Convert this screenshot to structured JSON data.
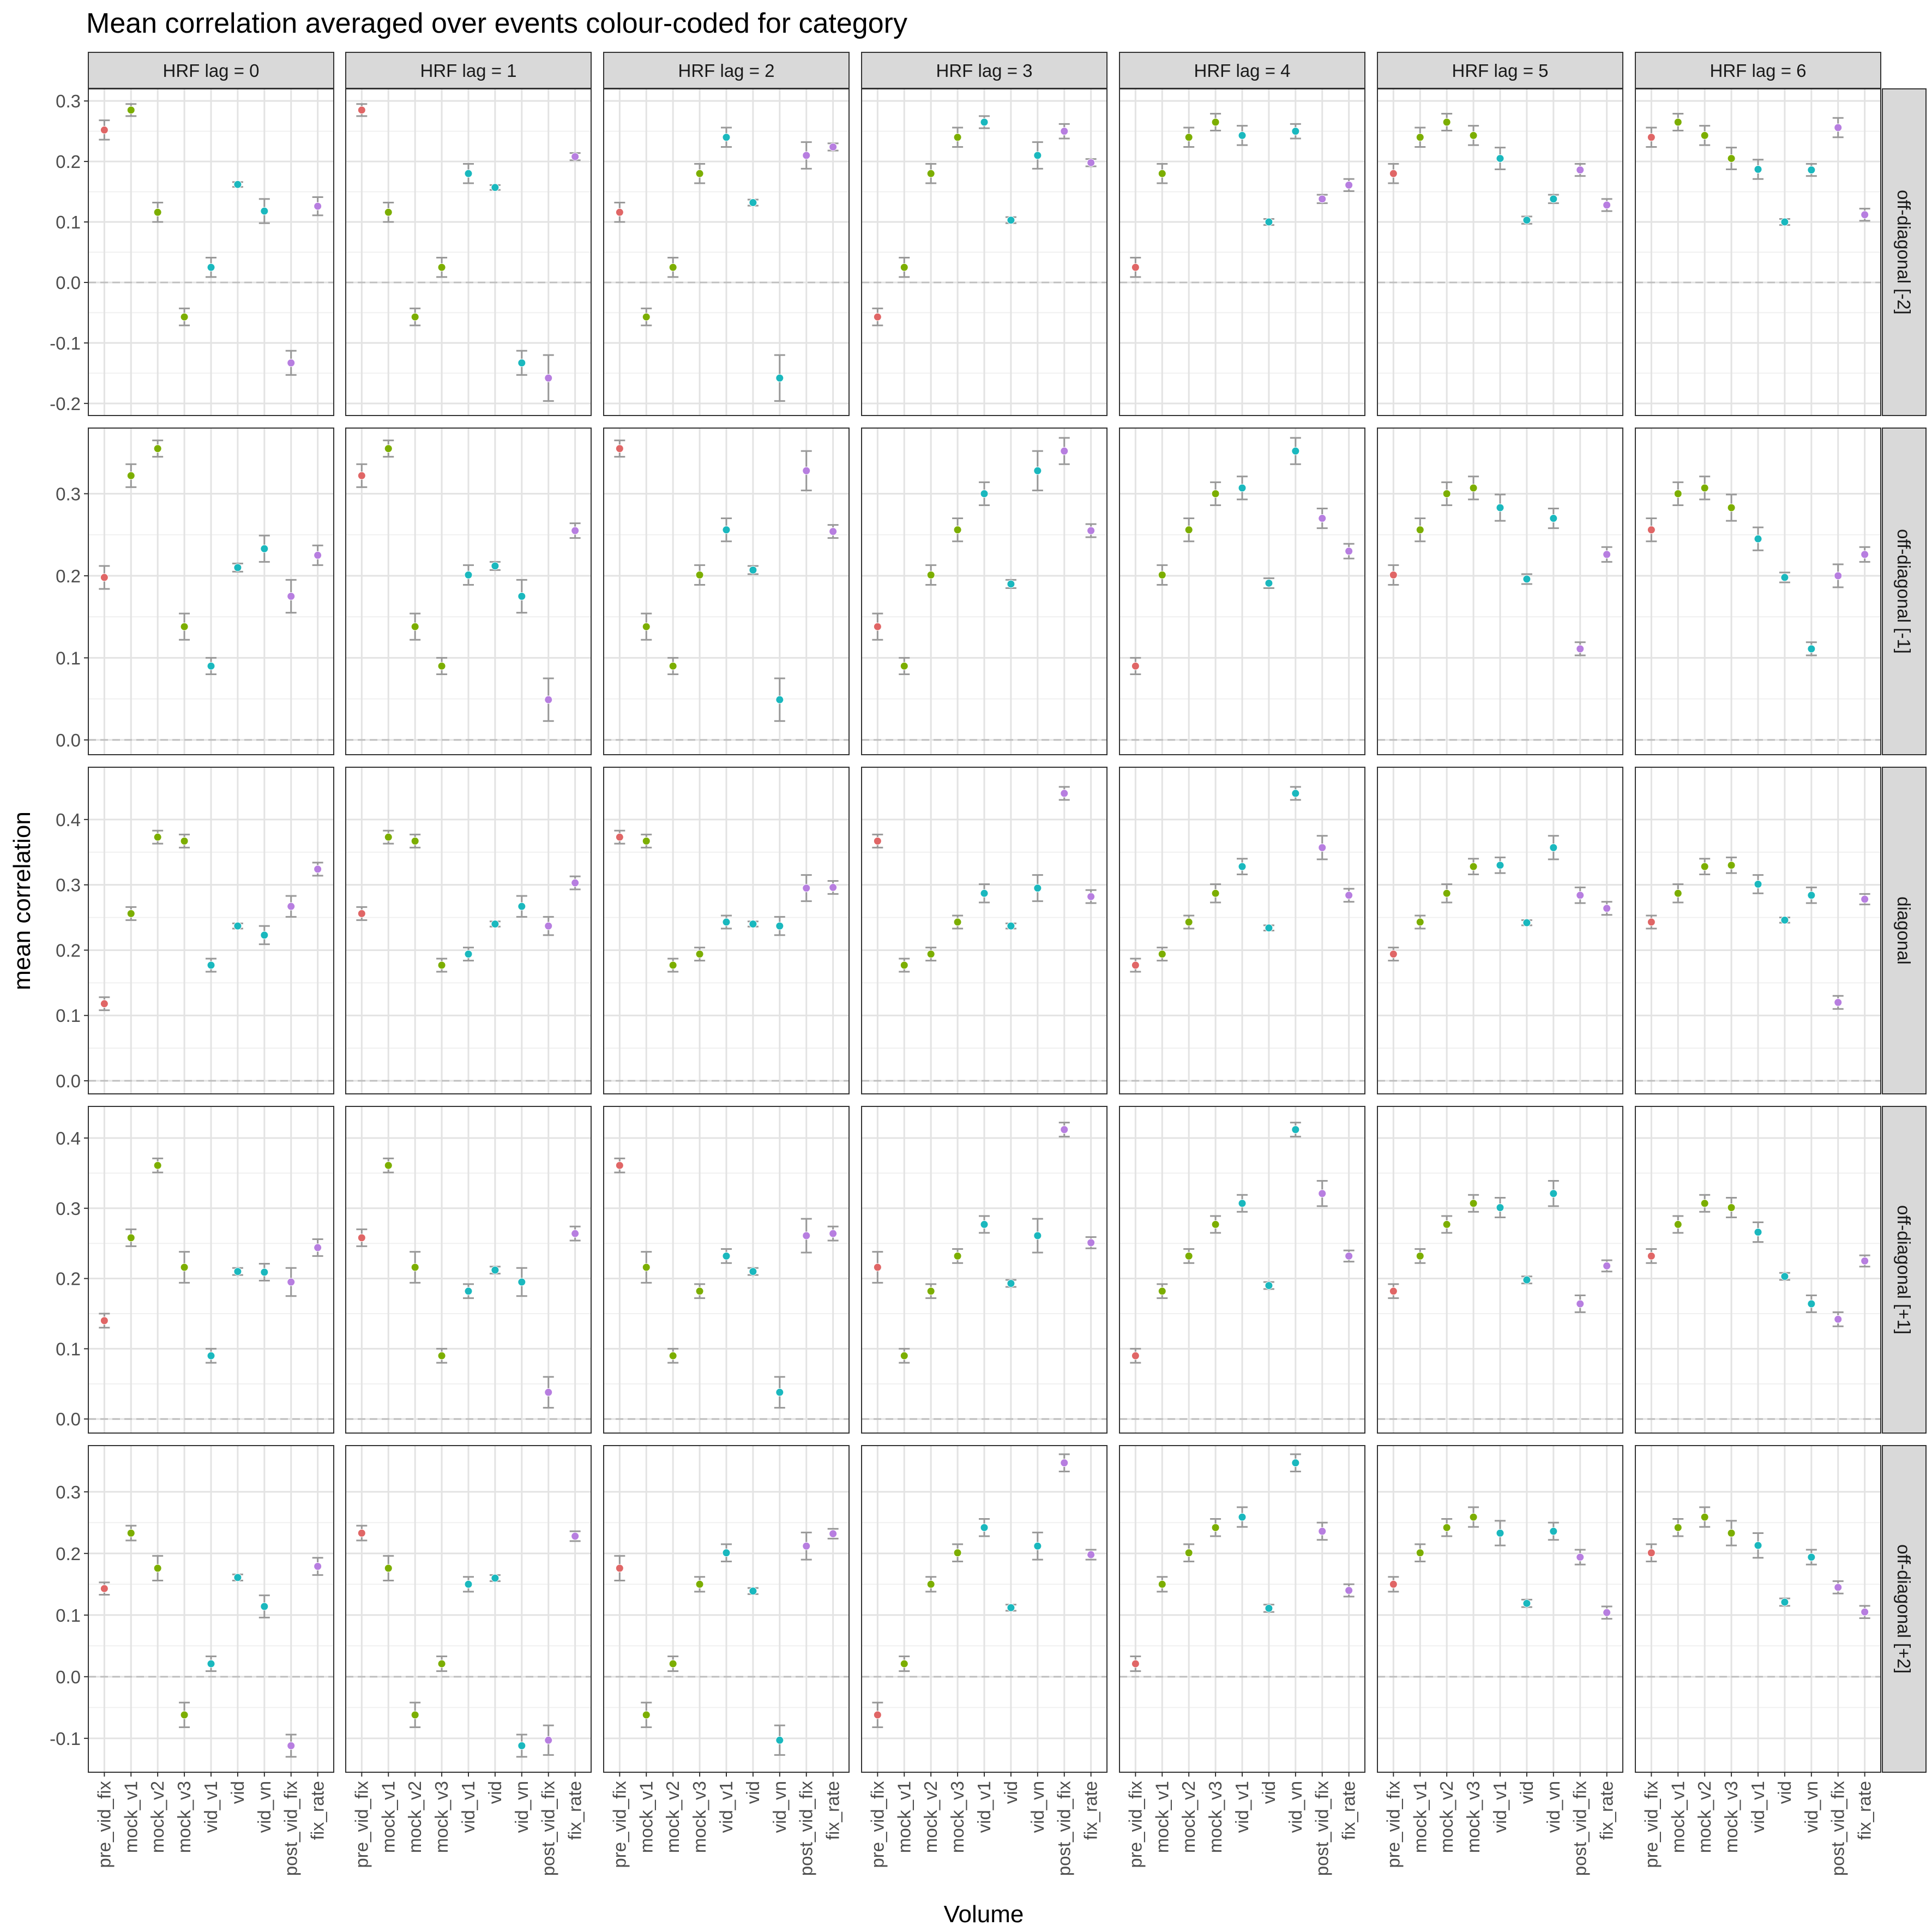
{
  "chart_data": {
    "type": "scatter",
    "subtype": "point-with-errorbars, faceted grid",
    "title": "Mean correlation averaged over events colour-coded for category",
    "xlabel": "Volume",
    "ylabel": "mean correlation",
    "categories": [
      "pre_vid_fix",
      "mock_v1",
      "mock_v2",
      "mock_v3",
      "vid_v1",
      "vid",
      "vid_vn",
      "post_vid_fix",
      "fix_rate"
    ],
    "col_facets": [
      "HRF lag = 0",
      "HRF lag = 1",
      "HRF lag = 2",
      "HRF lag = 3",
      "HRF lag = 4",
      "HRF lag = 5",
      "HRF lag = 6"
    ],
    "row_facets": [
      "off-diagonal [-2]",
      "off-diagonal [-1]",
      "diagonal",
      "off-diagonal [+1]",
      "off-diagonal [+2]"
    ],
    "category_colors": [
      "#e06666",
      "#7cae00",
      "#7cae00",
      "#7cae00",
      "#1ab8be",
      "#1ab8be",
      "#1ab8be",
      "#b77ee0",
      "#b77ee0"
    ],
    "errorbar_color": "#999999",
    "reference_line": {
      "y": 0,
      "style": "dashed"
    },
    "grid": true,
    "rows": [
      {
        "ylim": [
          -0.22,
          0.32
        ],
        "yticks": [
          -0.2,
          -0.1,
          0.0,
          0.1,
          0.2,
          0.3
        ],
        "ytick_labels": [
          "-0.2",
          "-0.1",
          "0.0",
          "0.1",
          "0.2",
          "0.3"
        ],
        "values": [
          [
            0.252,
            0.285,
            0.116,
            -0.057,
            0.025,
            0.162,
            0.118,
            -0.133,
            0.126
          ],
          [
            0.285,
            0.116,
            -0.057,
            0.025,
            0.18,
            0.157,
            -0.133,
            -0.158,
            0.208
          ],
          [
            0.116,
            -0.057,
            0.025,
            0.18,
            0.24,
            0.132,
            -0.158,
            0.21,
            0.224
          ],
          [
            -0.057,
            0.025,
            0.18,
            0.24,
            0.265,
            0.103,
            0.21,
            0.25,
            0.198
          ],
          [
            0.025,
            0.18,
            0.24,
            0.265,
            0.243,
            0.1,
            0.25,
            0.138,
            0.161
          ],
          [
            0.18,
            0.24,
            0.265,
            0.243,
            0.205,
            0.103,
            0.138,
            0.186,
            0.128
          ],
          [
            0.24,
            0.265,
            0.243,
            0.205,
            0.187,
            0.1,
            0.186,
            0.256,
            0.112
          ]
        ],
        "errors": [
          [
            0.016,
            0.01,
            0.016,
            0.014,
            0.016,
            0.004,
            0.02,
            0.02,
            0.015
          ],
          [
            0.01,
            0.016,
            0.014,
            0.016,
            0.016,
            0.004,
            0.02,
            0.038,
            0.006
          ],
          [
            0.016,
            0.014,
            0.016,
            0.016,
            0.016,
            0.005,
            0.038,
            0.022,
            0.006
          ],
          [
            0.014,
            0.016,
            0.016,
            0.016,
            0.01,
            0.005,
            0.022,
            0.012,
            0.006
          ],
          [
            0.016,
            0.016,
            0.016,
            0.014,
            0.016,
            0.005,
            0.012,
            0.007,
            0.01
          ],
          [
            0.016,
            0.016,
            0.014,
            0.016,
            0.018,
            0.006,
            0.007,
            0.01,
            0.01
          ],
          [
            0.016,
            0.014,
            0.016,
            0.018,
            0.016,
            0.005,
            0.01,
            0.016,
            0.01
          ]
        ]
      },
      {
        "ylim": [
          -0.018,
          0.38
        ],
        "yticks": [
          0.0,
          0.1,
          0.2,
          0.3
        ],
        "ytick_labels": [
          "0.0",
          "0.1",
          "0.2",
          "0.3"
        ],
        "values": [
          [
            0.198,
            0.322,
            0.355,
            0.138,
            0.09,
            0.21,
            0.233,
            0.175,
            0.225
          ],
          [
            0.322,
            0.355,
            0.138,
            0.09,
            0.201,
            0.212,
            0.175,
            0.049,
            0.255
          ],
          [
            0.355,
            0.138,
            0.09,
            0.201,
            0.256,
            0.207,
            0.049,
            0.328,
            0.254
          ],
          [
            0.138,
            0.09,
            0.201,
            0.256,
            0.3,
            0.19,
            0.328,
            0.352,
            0.255
          ],
          [
            0.09,
            0.201,
            0.256,
            0.3,
            0.307,
            0.191,
            0.352,
            0.27,
            0.23
          ],
          [
            0.201,
            0.256,
            0.3,
            0.307,
            0.283,
            0.196,
            0.27,
            0.111,
            0.226
          ],
          [
            0.256,
            0.3,
            0.307,
            0.283,
            0.245,
            0.198,
            0.111,
            0.2,
            0.226
          ]
        ],
        "errors": [
          [
            0.014,
            0.014,
            0.01,
            0.016,
            0.01,
            0.005,
            0.016,
            0.02,
            0.012
          ],
          [
            0.014,
            0.01,
            0.016,
            0.01,
            0.012,
            0.005,
            0.02,
            0.026,
            0.009
          ],
          [
            0.01,
            0.016,
            0.01,
            0.012,
            0.014,
            0.005,
            0.026,
            0.024,
            0.008
          ],
          [
            0.016,
            0.01,
            0.012,
            0.014,
            0.014,
            0.005,
            0.024,
            0.016,
            0.008
          ],
          [
            0.01,
            0.012,
            0.014,
            0.014,
            0.014,
            0.006,
            0.016,
            0.012,
            0.009
          ],
          [
            0.012,
            0.014,
            0.014,
            0.014,
            0.016,
            0.006,
            0.012,
            0.008,
            0.009
          ],
          [
            0.014,
            0.014,
            0.014,
            0.016,
            0.014,
            0.006,
            0.008,
            0.014,
            0.009
          ]
        ]
      },
      {
        "ylim": [
          -0.02,
          0.48
        ],
        "yticks": [
          0.0,
          0.1,
          0.2,
          0.3,
          0.4
        ],
        "ytick_labels": [
          "0.0",
          "0.1",
          "0.2",
          "0.3",
          "0.4"
        ],
        "values": [
          [
            0.118,
            0.256,
            0.373,
            0.367,
            0.177,
            0.237,
            0.223,
            0.267,
            0.324
          ],
          [
            0.256,
            0.373,
            0.367,
            0.177,
            0.194,
            0.24,
            0.267,
            0.237,
            0.303
          ],
          [
            0.373,
            0.367,
            0.177,
            0.194,
            0.243,
            0.24,
            0.237,
            0.295,
            0.296
          ],
          [
            0.367,
            0.177,
            0.194,
            0.243,
            0.287,
            0.237,
            0.295,
            0.44,
            0.282
          ],
          [
            0.177,
            0.194,
            0.243,
            0.287,
            0.328,
            0.234,
            0.44,
            0.357,
            0.284
          ],
          [
            0.194,
            0.243,
            0.287,
            0.328,
            0.33,
            0.242,
            0.357,
            0.284,
            0.264
          ],
          [
            0.243,
            0.287,
            0.328,
            0.33,
            0.301,
            0.246,
            0.284,
            0.12,
            0.278
          ]
        ],
        "errors": [
          [
            0.01,
            0.01,
            0.01,
            0.01,
            0.01,
            0.004,
            0.014,
            0.016,
            0.01
          ],
          [
            0.01,
            0.01,
            0.01,
            0.01,
            0.01,
            0.004,
            0.016,
            0.014,
            0.01
          ],
          [
            0.01,
            0.01,
            0.01,
            0.01,
            0.01,
            0.004,
            0.014,
            0.02,
            0.01
          ],
          [
            0.01,
            0.01,
            0.01,
            0.01,
            0.014,
            0.004,
            0.02,
            0.01,
            0.01
          ],
          [
            0.01,
            0.01,
            0.01,
            0.014,
            0.012,
            0.004,
            0.01,
            0.018,
            0.01
          ],
          [
            0.01,
            0.01,
            0.014,
            0.012,
            0.012,
            0.004,
            0.018,
            0.012,
            0.01
          ],
          [
            0.01,
            0.014,
            0.012,
            0.012,
            0.014,
            0.004,
            0.012,
            0.01,
            0.008
          ]
        ]
      },
      {
        "ylim": [
          -0.02,
          0.445
        ],
        "yticks": [
          0.0,
          0.1,
          0.2,
          0.3,
          0.4
        ],
        "ytick_labels": [
          "0.0",
          "0.1",
          "0.2",
          "0.3",
          "0.4"
        ],
        "values": [
          [
            0.14,
            0.258,
            0.361,
            0.216,
            0.09,
            0.21,
            0.209,
            0.195,
            0.244
          ],
          [
            0.258,
            0.361,
            0.216,
            0.09,
            0.182,
            0.212,
            0.195,
            0.038,
            0.264
          ],
          [
            0.361,
            0.216,
            0.09,
            0.182,
            0.232,
            0.21,
            0.038,
            0.261,
            0.264
          ],
          [
            0.216,
            0.09,
            0.182,
            0.232,
            0.277,
            0.193,
            0.261,
            0.412,
            0.251
          ],
          [
            0.09,
            0.182,
            0.232,
            0.277,
            0.307,
            0.19,
            0.412,
            0.321,
            0.232
          ],
          [
            0.182,
            0.232,
            0.277,
            0.307,
            0.301,
            0.198,
            0.321,
            0.164,
            0.218
          ],
          [
            0.232,
            0.277,
            0.307,
            0.301,
            0.266,
            0.203,
            0.164,
            0.142,
            0.225
          ]
        ],
        "errors": [
          [
            0.01,
            0.012,
            0.01,
            0.022,
            0.01,
            0.005,
            0.012,
            0.02,
            0.012
          ],
          [
            0.012,
            0.01,
            0.022,
            0.01,
            0.01,
            0.005,
            0.02,
            0.022,
            0.01
          ],
          [
            0.01,
            0.022,
            0.01,
            0.01,
            0.01,
            0.005,
            0.022,
            0.024,
            0.01
          ],
          [
            0.022,
            0.01,
            0.01,
            0.01,
            0.012,
            0.005,
            0.024,
            0.01,
            0.008
          ],
          [
            0.01,
            0.01,
            0.01,
            0.012,
            0.012,
            0.005,
            0.01,
            0.018,
            0.008
          ],
          [
            0.01,
            0.01,
            0.012,
            0.012,
            0.014,
            0.005,
            0.018,
            0.012,
            0.008
          ],
          [
            0.01,
            0.012,
            0.012,
            0.014,
            0.014,
            0.005,
            0.012,
            0.01,
            0.008
          ]
        ]
      },
      {
        "ylim": [
          -0.155,
          0.375
        ],
        "yticks": [
          -0.1,
          0.0,
          0.1,
          0.2,
          0.3
        ],
        "ytick_labels": [
          "-0.1",
          "0.0",
          "0.1",
          "0.2",
          "0.3"
        ],
        "values": [
          [
            0.143,
            0.233,
            0.176,
            -0.062,
            0.021,
            0.161,
            0.114,
            -0.112,
            0.179
          ],
          [
            0.233,
            0.176,
            -0.062,
            0.021,
            0.15,
            0.16,
            -0.112,
            -0.103,
            0.228
          ],
          [
            0.176,
            -0.062,
            0.021,
            0.15,
            0.201,
            0.139,
            -0.103,
            0.212,
            0.232
          ],
          [
            -0.062,
            0.021,
            0.15,
            0.201,
            0.242,
            0.112,
            0.212,
            0.347,
            0.198
          ],
          [
            0.021,
            0.15,
            0.201,
            0.242,
            0.259,
            0.111,
            0.347,
            0.236,
            0.14
          ],
          [
            0.15,
            0.201,
            0.242,
            0.259,
            0.233,
            0.119,
            0.236,
            0.194,
            0.104
          ],
          [
            0.201,
            0.242,
            0.259,
            0.233,
            0.213,
            0.121,
            0.194,
            0.145,
            0.105
          ]
        ],
        "errors": [
          [
            0.01,
            0.012,
            0.02,
            0.02,
            0.012,
            0.005,
            0.018,
            0.018,
            0.014
          ],
          [
            0.012,
            0.02,
            0.02,
            0.012,
            0.012,
            0.005,
            0.018,
            0.024,
            0.008
          ],
          [
            0.02,
            0.02,
            0.012,
            0.012,
            0.014,
            0.005,
            0.024,
            0.022,
            0.008
          ],
          [
            0.02,
            0.012,
            0.012,
            0.014,
            0.014,
            0.005,
            0.022,
            0.014,
            0.008
          ],
          [
            0.012,
            0.012,
            0.014,
            0.014,
            0.016,
            0.006,
            0.014,
            0.014,
            0.01
          ],
          [
            0.012,
            0.014,
            0.014,
            0.016,
            0.02,
            0.006,
            0.014,
            0.012,
            0.01
          ],
          [
            0.014,
            0.014,
            0.016,
            0.02,
            0.02,
            0.006,
            0.012,
            0.01,
            0.01
          ]
        ]
      }
    ]
  }
}
